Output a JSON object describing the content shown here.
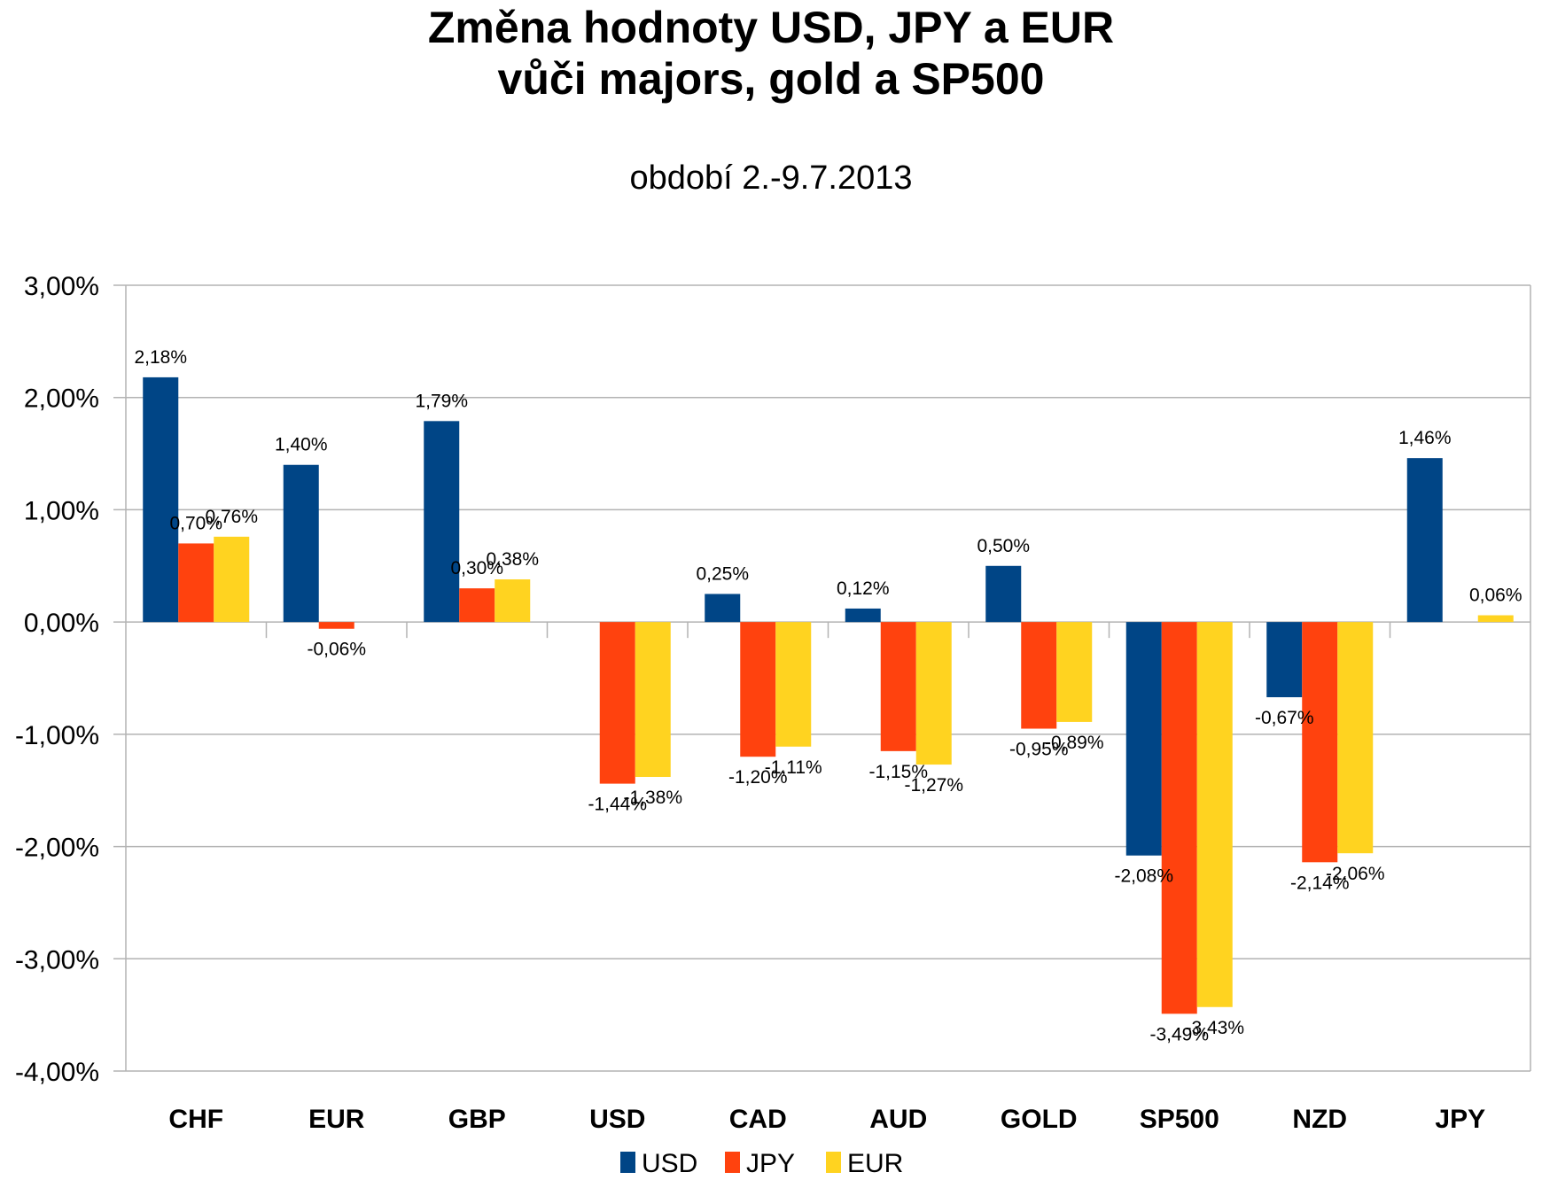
{
  "chart_data": {
    "type": "bar",
    "title": "Změna hodnoty USD, JPY a EUR",
    "title_line2": "vůči majors, gold a SP500",
    "subtitle": "období 2.-9.7.2013",
    "xlabel": "",
    "ylabel": "",
    "ylim": [
      -4,
      3
    ],
    "y_ticks": [
      "3,00%",
      "2,00%",
      "1,00%",
      "0,00%",
      "-1,00%",
      "-2,00%",
      "-3,00%",
      "-4,00%"
    ],
    "y_tick_values": [
      3,
      2,
      1,
      0,
      -1,
      -2,
      -3,
      -4
    ],
    "grid": true,
    "legend_position": "bottom",
    "categories": [
      "CHF",
      "EUR",
      "GBP",
      "USD",
      "CAD",
      "AUD",
      "GOLD",
      "SP500",
      "NZD",
      "JPY"
    ],
    "series": [
      {
        "name": "USD",
        "color": "#004586",
        "values": [
          2.18,
          1.4,
          1.79,
          null,
          0.25,
          0.12,
          0.5,
          -2.08,
          -0.67,
          1.46
        ],
        "labels": [
          "2,18%",
          "1,40%",
          "1,79%",
          null,
          "0,25%",
          "0,12%",
          "0,50%",
          "-2,08%",
          "-0,67%",
          "1,46%"
        ]
      },
      {
        "name": "JPY",
        "color": "#ff420e",
        "values": [
          0.7,
          -0.06,
          0.3,
          -1.44,
          -1.2,
          -1.15,
          -0.95,
          -3.49,
          -2.14,
          null
        ],
        "labels": [
          "0,70%",
          "-0,06%",
          "0,30%",
          "-1,44%",
          "-1,20%",
          "-1,15%",
          "-0,95%",
          "-3,49%",
          "-2,14%",
          null
        ]
      },
      {
        "name": "EUR",
        "color": "#ffd320",
        "values": [
          0.76,
          null,
          0.38,
          -1.38,
          -1.11,
          -1.27,
          -0.89,
          -3.43,
          -2.06,
          0.06
        ],
        "labels": [
          "0,76%",
          null,
          "0,38%",
          "-1,38%",
          "-1,11%",
          "-1,27%",
          "-0,89%",
          "-3,43%",
          "-2,06%",
          "0,06%"
        ]
      }
    ]
  }
}
